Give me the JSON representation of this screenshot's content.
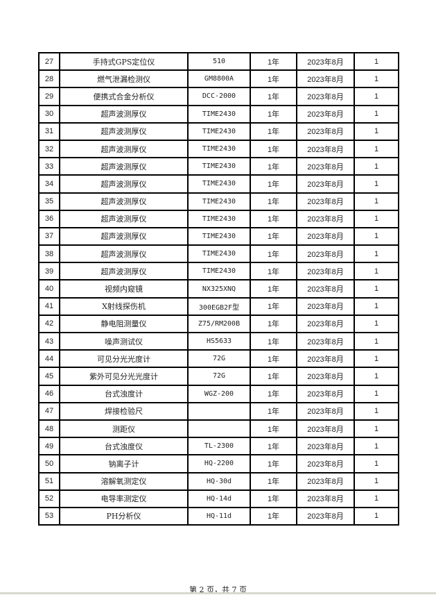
{
  "rows": [
    [
      "27",
      "手持式GPS定位仪",
      "510",
      "1年",
      "2023年8月",
      "1"
    ],
    [
      "28",
      "燃气泄漏检测仪",
      "GM8800A",
      "1年",
      "2023年8月",
      "1"
    ],
    [
      "29",
      "便携式合金分析仪",
      "DCC-2000",
      "1年",
      "2023年8月",
      "1"
    ],
    [
      "30",
      "超声波测厚仪",
      "TIME2430",
      "1年",
      "2023年8月",
      "1"
    ],
    [
      "31",
      "超声波测厚仪",
      "TIME2430",
      "1年",
      "2023年8月",
      "1"
    ],
    [
      "32",
      "超声波测厚仪",
      "TIME2430",
      "1年",
      "2023年8月",
      "1"
    ],
    [
      "33",
      "超声波测厚仪",
      "TIME2430",
      "1年",
      "2023年8月",
      "1"
    ],
    [
      "34",
      "超声波测厚仪",
      "TIME2430",
      "1年",
      "2023年8月",
      "1"
    ],
    [
      "35",
      "超声波测厚仪",
      "TIME2430",
      "1年",
      "2023年8月",
      "1"
    ],
    [
      "36",
      "超声波测厚仪",
      "TIME2430",
      "1年",
      "2023年8月",
      "1"
    ],
    [
      "37",
      "超声波测厚仪",
      "TIME2430",
      "1年",
      "2023年8月",
      "1"
    ],
    [
      "38",
      "超声波测厚仪",
      "TIME2430",
      "1年",
      "2023年8月",
      "1"
    ],
    [
      "39",
      "超声波测厚仪",
      "TIME2430",
      "1年",
      "2023年8月",
      "1"
    ],
    [
      "40",
      "视频内窥镜",
      "NX325XNQ",
      "1年",
      "2023年8月",
      "1"
    ],
    [
      "41",
      "X射线探伤机",
      "300EGB2F型",
      "1年",
      "2023年8月",
      "1"
    ],
    [
      "42",
      "静电阻测量仪",
      "Z75/RM200B",
      "1年",
      "2023年8月",
      "1"
    ],
    [
      "43",
      "噪声测试仪",
      "HS5633",
      "1年",
      "2023年8月",
      "1"
    ],
    [
      "44",
      "可见分光光度计",
      "72G",
      "1年",
      "2023年8月",
      "1"
    ],
    [
      "45",
      "紫外可见分光光度计",
      "72G",
      "1年",
      "2023年8月",
      "1"
    ],
    [
      "46",
      "台式浊度计",
      "WGZ-200",
      "1年",
      "2023年8月",
      "1"
    ],
    [
      "47",
      "焊接检验尺",
      "",
      "1年",
      "2023年8月",
      "1"
    ],
    [
      "48",
      "测距仪",
      "",
      "1年",
      "2023年8月",
      "1"
    ],
    [
      "49",
      "台式浊度仪",
      "TL-2300",
      "1年",
      "2023年8月",
      "1"
    ],
    [
      "50",
      "钠离子计",
      "HQ-2200",
      "1年",
      "2023年8月",
      "1"
    ],
    [
      "51",
      "溶解氧测定仪",
      "HQ-30d",
      "1年",
      "2023年8月",
      "1"
    ],
    [
      "52",
      "电导率测定仪",
      "HQ-14d",
      "1年",
      "2023年8月",
      "1"
    ],
    [
      "53",
      "PH分析仪",
      "HQ-11d",
      "1年",
      "2023年8月",
      "1"
    ]
  ],
  "footer": "第 2 页，共 7 页"
}
